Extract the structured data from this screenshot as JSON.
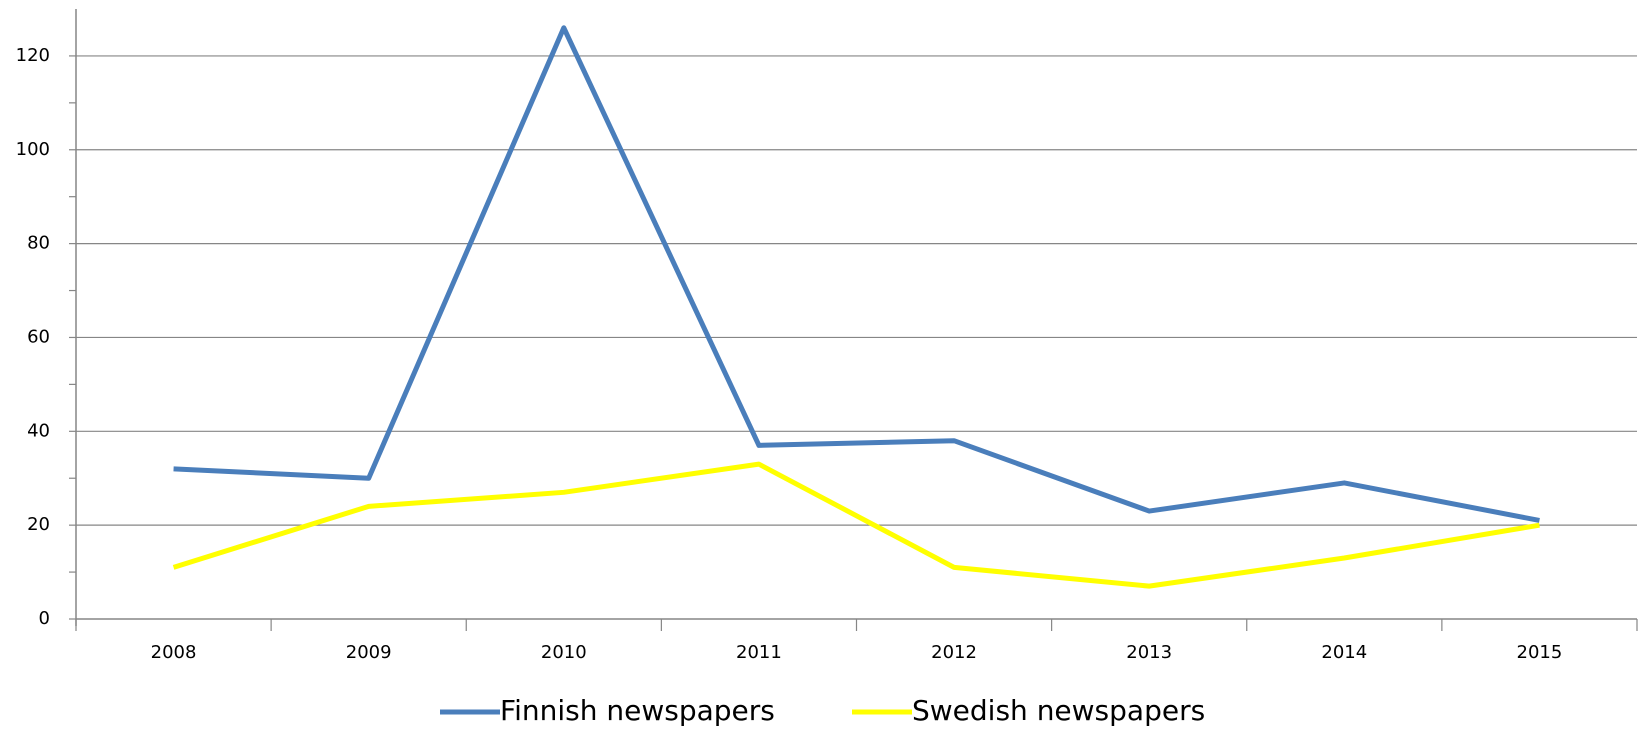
{
  "chart_data": {
    "type": "line",
    "categories": [
      "2008",
      "2009",
      "2010",
      "2011",
      "2012",
      "2013",
      "2014",
      "2015"
    ],
    "series": [
      {
        "name": "Finnish newspapers",
        "color": "#4a7ebb",
        "values": [
          32,
          30,
          126,
          37,
          38,
          23,
          29,
          21
        ]
      },
      {
        "name": "Swedish newspapers",
        "color": "#ffff00",
        "values": [
          11,
          24,
          27,
          33,
          11,
          7,
          13,
          20
        ]
      }
    ],
    "ylim": [
      0,
      130
    ],
    "yticks": [
      0,
      20,
      40,
      60,
      80,
      100,
      120
    ],
    "grid": true,
    "legend": "bottom"
  }
}
